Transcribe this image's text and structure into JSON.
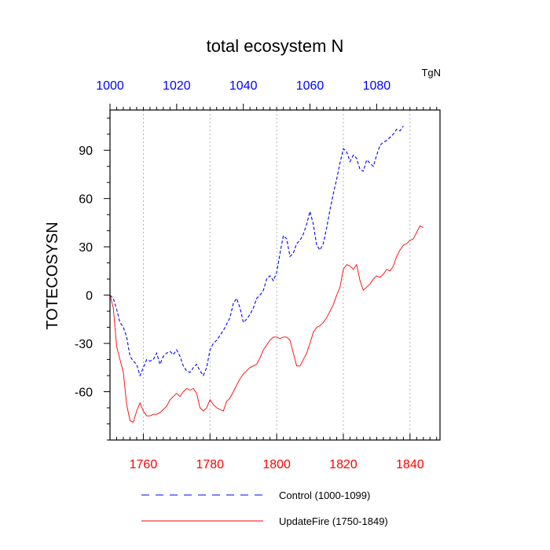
{
  "chart_data": {
    "type": "line",
    "title": "total ecosystem N",
    "units_label": "TgN",
    "ylabel": "TOTECOSYSN",
    "ylim": [
      -90,
      115
    ],
    "yticks": [
      -60,
      -30,
      0,
      30,
      60,
      90
    ],
    "grid": "vertical dashed at bottom-axis major ticks",
    "legend_position": "bottom",
    "x_bottom": {
      "range": [
        1750,
        1849
      ],
      "ticks": [
        1760,
        1780,
        1800,
        1820,
        1840
      ],
      "color": "#ff0000"
    },
    "x_top": {
      "range": [
        1000,
        1099
      ],
      "ticks": [
        1000,
        1020,
        1040,
        1060,
        1080
      ],
      "color": "#0000ff"
    },
    "series": [
      {
        "name": "Control (1000-1099)",
        "axis": "top",
        "color": "#0000ff",
        "dash": "dashed",
        "x_start": 1000,
        "values": [
          0,
          -2,
          -9,
          -17,
          -20,
          -26,
          -38,
          -41,
          -43,
          -50,
          -45,
          -40,
          -41,
          -40,
          -36,
          -43,
          -38,
          -36,
          -35,
          -37,
          -34,
          -38,
          -44,
          -47,
          -48,
          -45,
          -43,
          -47,
          -50,
          -45,
          -34,
          -30,
          -28,
          -25,
          -22,
          -18,
          -14,
          -5,
          -2,
          -8,
          -17,
          -15,
          -12,
          -8,
          -2,
          0,
          3,
          10,
          12,
          9,
          14,
          26,
          37,
          35,
          24,
          26,
          32,
          34,
          38,
          44,
          52,
          44,
          31,
          28,
          32,
          42,
          53,
          63,
          72,
          82,
          91,
          89,
          83,
          87,
          85,
          78,
          77,
          84,
          82,
          80,
          87,
          93,
          95,
          96,
          98,
          100,
          103,
          102,
          105
        ]
      },
      {
        "name": "UpdateFire (1750-1849)",
        "axis": "bottom",
        "color": "#ff0000",
        "dash": "solid",
        "x_start": 1750,
        "values": [
          0,
          -8,
          -32,
          -40,
          -48,
          -68,
          -78,
          -79,
          -72,
          -67,
          -72,
          -75,
          -75,
          -74,
          -74,
          -73,
          -71,
          -69,
          -65,
          -63,
          -61,
          -63,
          -60,
          -58,
          -59,
          -58,
          -61,
          -70,
          -72,
          -70,
          -65,
          -68,
          -70,
          -71,
          -72,
          -66,
          -64,
          -60,
          -56,
          -52,
          -49,
          -47,
          -45,
          -44,
          -43,
          -39,
          -34,
          -31,
          -28,
          -26,
          -26,
          -27,
          -26,
          -26,
          -28,
          -36,
          -44,
          -44,
          -40,
          -36,
          -30,
          -23,
          -20,
          -19,
          -17,
          -14,
          -10,
          -6,
          0,
          5,
          16,
          19,
          18,
          16,
          19,
          9,
          3,
          5,
          7,
          10,
          12,
          11,
          13,
          16,
          15,
          18,
          24,
          28,
          31,
          32,
          34,
          35,
          39,
          43,
          42
        ]
      }
    ]
  }
}
